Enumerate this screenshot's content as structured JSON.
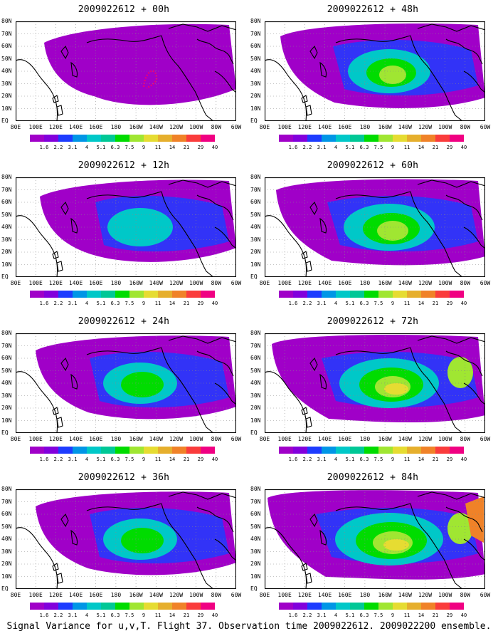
{
  "caption": "Signal Variance for u,v,T. Flight 37. Observation time 2009022612. 2009022200 ensemble.",
  "colorbar": {
    "labels": [
      "1.6",
      "2.2",
      "3.1",
      "4",
      "5.1",
      "6.3",
      "7.5",
      "9",
      "11",
      "14",
      "21",
      "29",
      "40"
    ],
    "colors": [
      "#a000c8",
      "#8200dc",
      "#1e3cff",
      "#0096e6",
      "#00c8c8",
      "#00c896",
      "#00dc00",
      "#a0e632",
      "#e6dc32",
      "#e6af2d",
      "#f08228",
      "#fa3c3c",
      "#f00082"
    ]
  },
  "lat_labels": [
    "80N",
    "70N",
    "60N",
    "50N",
    "40N",
    "30N",
    "20N",
    "10N",
    "EQ"
  ],
  "lon_labels": [
    "80E",
    "100E",
    "120E",
    "140E",
    "160E",
    "180",
    "160W",
    "140W",
    "120W",
    "100W",
    "80W",
    "60W"
  ],
  "panels": [
    {
      "title": "2009022612 + 00h",
      "level": 0
    },
    {
      "title": "2009022612 + 48h",
      "level": 3
    },
    {
      "title": "2009022612 + 12h",
      "level": 1
    },
    {
      "title": "2009022612 + 60h",
      "level": 4
    },
    {
      "title": "2009022612 + 24h",
      "level": 2
    },
    {
      "title": "2009022612 + 72h",
      "level": 5
    },
    {
      "title": "2009022612 + 36h",
      "level": 2
    },
    {
      "title": "2009022612 + 84h",
      "level": 6
    }
  ]
}
